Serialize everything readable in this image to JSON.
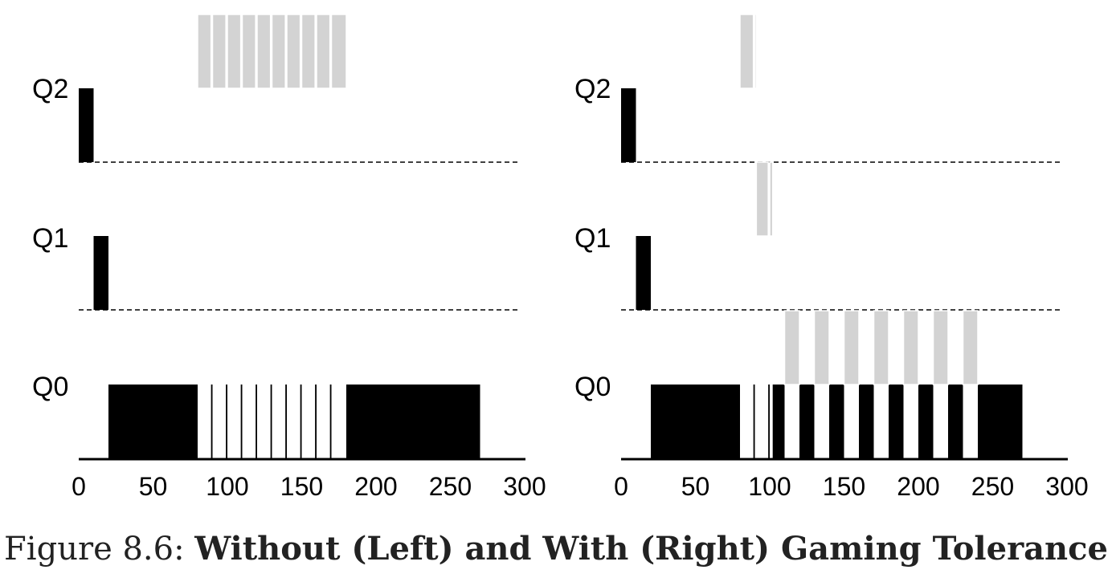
{
  "caption": {
    "prefix": "Figure 8.6: ",
    "title": "Without (Left) and With (Right) Gaming Tolerance"
  },
  "colors": {
    "cpu_bound": "#000000",
    "interactive": "#d3d3d3"
  },
  "chart_data": [
    {
      "type": "timeline",
      "xlim": [
        0,
        300
      ],
      "x_ticks": [
        "0",
        "50",
        "100",
        "150",
        "200",
        "250",
        "300"
      ],
      "queues": [
        "Q2",
        "Q1",
        "Q0"
      ],
      "segments": [
        {
          "queue": "Q2",
          "color": "black",
          "start": 0,
          "end": 10
        },
        {
          "queue": "Q1",
          "color": "black",
          "start": 10,
          "end": 20
        },
        {
          "queue": "Q0",
          "color": "black",
          "start": 20,
          "end": 80
        },
        {
          "queue": "Q0",
          "color": "black",
          "start": 89,
          "end": 90
        },
        {
          "queue": "Q0",
          "color": "black",
          "start": 99,
          "end": 100
        },
        {
          "queue": "Q0",
          "color": "black",
          "start": 109,
          "end": 110
        },
        {
          "queue": "Q0",
          "color": "black",
          "start": 119,
          "end": 120
        },
        {
          "queue": "Q0",
          "color": "black",
          "start": 129,
          "end": 130
        },
        {
          "queue": "Q0",
          "color": "black",
          "start": 139,
          "end": 140
        },
        {
          "queue": "Q0",
          "color": "black",
          "start": 149,
          "end": 150
        },
        {
          "queue": "Q0",
          "color": "black",
          "start": 159,
          "end": 160
        },
        {
          "queue": "Q0",
          "color": "black",
          "start": 169,
          "end": 170
        },
        {
          "queue": "Q0",
          "color": "black",
          "start": 180,
          "end": 270
        },
        {
          "queue": "Q2",
          "color": "gray",
          "start": 80,
          "end": 89
        },
        {
          "queue": "Q2",
          "color": "gray",
          "start": 90,
          "end": 99
        },
        {
          "queue": "Q2",
          "color": "gray",
          "start": 100,
          "end": 109
        },
        {
          "queue": "Q2",
          "color": "gray",
          "start": 110,
          "end": 119
        },
        {
          "queue": "Q2",
          "color": "gray",
          "start": 120,
          "end": 129
        },
        {
          "queue": "Q2",
          "color": "gray",
          "start": 130,
          "end": 139
        },
        {
          "queue": "Q2",
          "color": "gray",
          "start": 140,
          "end": 149
        },
        {
          "queue": "Q2",
          "color": "gray",
          "start": 150,
          "end": 159
        },
        {
          "queue": "Q2",
          "color": "gray",
          "start": 160,
          "end": 169
        },
        {
          "queue": "Q2",
          "color": "gray",
          "start": 170,
          "end": 180
        }
      ]
    },
    {
      "type": "timeline",
      "xlim": [
        0,
        300
      ],
      "x_ticks": [
        "0",
        "50",
        "100",
        "150",
        "200",
        "250",
        "300"
      ],
      "queues": [
        "Q2",
        "Q1",
        "Q0"
      ],
      "segments": [
        {
          "queue": "Q2",
          "color": "black",
          "start": 0,
          "end": 10
        },
        {
          "queue": "Q1",
          "color": "black",
          "start": 10,
          "end": 20
        },
        {
          "queue": "Q0",
          "color": "black",
          "start": 20,
          "end": 80
        },
        {
          "queue": "Q0",
          "color": "black",
          "start": 89,
          "end": 90
        },
        {
          "queue": "Q0",
          "color": "black",
          "start": 99,
          "end": 100
        },
        {
          "queue": "Q0",
          "color": "black",
          "start": 102,
          "end": 110
        },
        {
          "queue": "Q0",
          "color": "black",
          "start": 120,
          "end": 130
        },
        {
          "queue": "Q0",
          "color": "black",
          "start": 140,
          "end": 150
        },
        {
          "queue": "Q0",
          "color": "black",
          "start": 160,
          "end": 170
        },
        {
          "queue": "Q0",
          "color": "black",
          "start": 180,
          "end": 190
        },
        {
          "queue": "Q0",
          "color": "black",
          "start": 200,
          "end": 210
        },
        {
          "queue": "Q0",
          "color": "black",
          "start": 220,
          "end": 230
        },
        {
          "queue": "Q0",
          "color": "black",
          "start": 240,
          "end": 270
        },
        {
          "queue": "Q2",
          "color": "gray",
          "start": 80,
          "end": 89
        },
        {
          "queue": "Q2",
          "color": "gray",
          "start": 90,
          "end": 91
        },
        {
          "queue": "Q1",
          "color": "gray",
          "start": 91,
          "end": 99
        },
        {
          "queue": "Q1",
          "color": "gray",
          "start": 100,
          "end": 102
        },
        {
          "queue": "Q0",
          "color": "gray",
          "start": 110,
          "end": 120
        },
        {
          "queue": "Q0",
          "color": "gray",
          "start": 130,
          "end": 140
        },
        {
          "queue": "Q0",
          "color": "gray",
          "start": 150,
          "end": 160
        },
        {
          "queue": "Q0",
          "color": "gray",
          "start": 170,
          "end": 180
        },
        {
          "queue": "Q0",
          "color": "gray",
          "start": 190,
          "end": 200
        },
        {
          "queue": "Q0",
          "color": "gray",
          "start": 210,
          "end": 220
        },
        {
          "queue": "Q0",
          "color": "gray",
          "start": 230,
          "end": 240
        }
      ]
    }
  ]
}
